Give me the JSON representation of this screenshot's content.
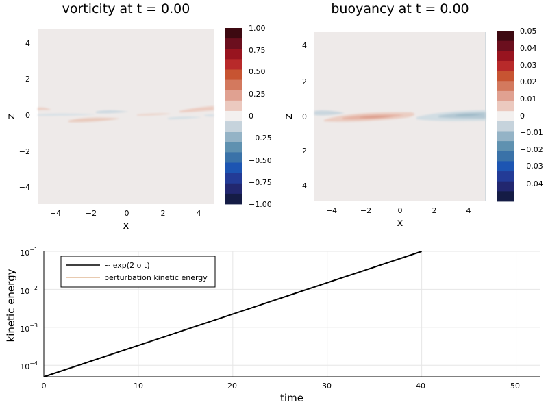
{
  "chart_data": [
    {
      "type": "heatmap",
      "title": "vorticity at t = 0.00",
      "xlabel": "x",
      "ylabel": "z",
      "xlim": [
        -5,
        5
      ],
      "ylim": [
        -5,
        5
      ],
      "xticks": [
        "−4",
        "−2",
        "0",
        "2",
        "4"
      ],
      "yticks": [
        "4",
        "2",
        "0",
        "−2",
        "−4"
      ],
      "colorbar_ticks": [
        "1.00",
        "0.75",
        "0.50",
        "0.25",
        "0",
        "−0.25",
        "−0.50",
        "−0.75",
        "−1.00"
      ],
      "colorbar_range": [
        -1.0,
        1.0
      ]
    },
    {
      "type": "heatmap",
      "title": "buoyancy at t = 0.00",
      "xlabel": "x",
      "ylabel": "z",
      "xlim": [
        -5,
        5
      ],
      "ylim": [
        -5,
        5
      ],
      "xticks": [
        "−4",
        "−2",
        "0",
        "2",
        "4"
      ],
      "yticks": [
        "4",
        "2",
        "0",
        "−2",
        "−4"
      ],
      "colorbar_ticks": [
        "0.05",
        "0.04",
        "0.03",
        "0.02",
        "0.01",
        "0",
        "−0.01",
        "−0.02",
        "−0.03",
        "−0.04"
      ],
      "colorbar_range": [
        -0.05,
        0.05
      ]
    },
    {
      "type": "line",
      "xlabel": "time",
      "ylabel": "kinetic energy",
      "xlim": [
        0,
        52.5
      ],
      "ylim": [
        5e-05,
        0.1
      ],
      "yscale": "log",
      "xticks": [
        "0",
        "10",
        "20",
        "30",
        "40",
        "50"
      ],
      "yticks": [
        {
          "base": "10",
          "exp": "−1"
        },
        {
          "base": "10",
          "exp": "−2"
        },
        {
          "base": "10",
          "exp": "−3"
        },
        {
          "base": "10",
          "exp": "−4"
        }
      ],
      "legend_position": "top-left",
      "series": [
        {
          "name": "~ exp(2 σ t)",
          "color": "#000000",
          "x": [
            0,
            40
          ],
          "y": [
            5e-05,
            0.1
          ]
        },
        {
          "name": "perturbation kinetic energy",
          "color": "#e0b896",
          "x": [],
          "y": []
        }
      ]
    }
  ]
}
